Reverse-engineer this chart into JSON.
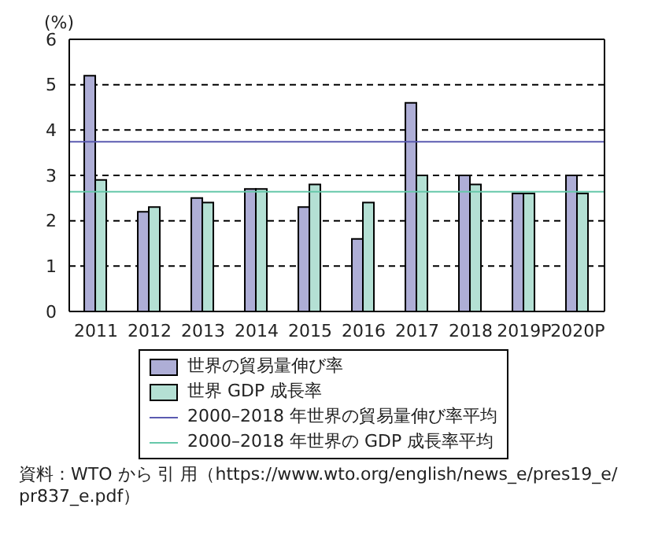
{
  "chart_data": {
    "type": "bar",
    "ylabel": "(%)",
    "categories": [
      "2011",
      "2012",
      "2013",
      "2014",
      "2015",
      "2016",
      "2017",
      "2018",
      "2019P",
      "2020P"
    ],
    "series": [
      {
        "name": "世界の貿易量伸び率",
        "color": "#aeaed6",
        "values": [
          5.2,
          2.2,
          2.5,
          2.7,
          2.3,
          1.6,
          4.6,
          3.0,
          2.6,
          3.0
        ]
      },
      {
        "name": "世界 GDP 成長率",
        "color": "#b4e0d4",
        "values": [
          2.9,
          2.3,
          2.4,
          2.7,
          2.8,
          2.4,
          3.0,
          2.8,
          2.6,
          2.6
        ]
      }
    ],
    "ref_lines": [
      {
        "axis": "y",
        "value": 3.74,
        "label": "2000–2018 年世界の貿易量伸び率平均",
        "color": "#5a5ab0"
      },
      {
        "axis": "y",
        "value": 2.64,
        "label": "2000–2018 年世界の GDP 成長率平均",
        "color": "#66c8aa"
      }
    ],
    "ylim": [
      0,
      6
    ],
    "yticks": [
      0,
      1,
      2,
      3,
      4,
      5,
      6
    ],
    "grid": "y",
    "legend": "bottom",
    "annotations": [
      "資料：WTO から 引 用（https://www.wto.org/english/news_e/pres19_e/pr837_e.pdf）"
    ]
  }
}
